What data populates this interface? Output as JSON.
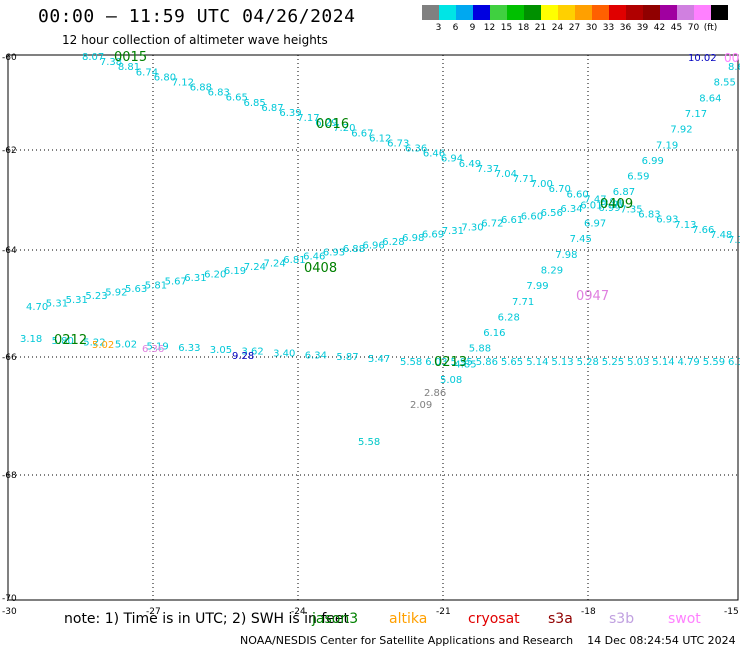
{
  "title": "00:00 – 11:59 UTC 04/26/2024",
  "subtitle": "12 hour collection of altimeter wave heights",
  "legend": {
    "unit": "(ft)",
    "colors": [
      "#808080",
      "#00e5e5",
      "#00a8f0",
      "#0000e0",
      "#40d040",
      "#00c000",
      "#009000",
      "#ffff00",
      "#ffd000",
      "#ffa000",
      "#ff6000",
      "#e00000",
      "#b00000",
      "#900000",
      "#a000a0",
      "#d080e0",
      "#ff80ff",
      "#000000"
    ],
    "ticks": [
      "3",
      "6",
      "9",
      "12",
      "15",
      "18",
      "21",
      "24",
      "27",
      "30",
      "33",
      "36",
      "39",
      "42",
      "45",
      "70"
    ]
  },
  "map": {
    "lat_labels": [
      "-60",
      "-62",
      "-64",
      "-66",
      "-68",
      "-70"
    ],
    "lon_labels": [
      "-30",
      "-27",
      "-24",
      "-21",
      "-18",
      "-15"
    ]
  },
  "tracks": [
    {
      "label": "0015",
      "color": "#008000",
      "points": [
        "8.07",
        "7.38",
        "8.81",
        "6.74",
        "6.80",
        "7.12",
        "6.88",
        "6.83",
        "6.65",
        "6.85",
        "6.87",
        "6.39",
        "7.17",
        "6.29",
        "7.20",
        "6.67",
        "6.12",
        "6.73",
        "6.36",
        "6.46",
        "6.94",
        "6.49",
        "7.37",
        "7.04",
        "7.71",
        "7.00",
        "6.70",
        "6.60",
        "7.47",
        "7.97",
        "7.35",
        "6.83",
        "6.93",
        "7.13",
        "7.66",
        "7.48",
        "7.3"
      ]
    },
    {
      "label": "0016",
      "color": "#008000",
      "points": []
    },
    {
      "label": "0408",
      "color": "#008000",
      "points": [
        "4.70",
        "5.31",
        "5.31",
        "5.23",
        "5.92",
        "5.63",
        "5.81",
        "5.67",
        "6.31",
        "6.20",
        "6.19",
        "7.24",
        "7.24",
        "6.81",
        "6.46",
        "6.93",
        "6.88",
        "6.96",
        "6.28",
        "6.98",
        "6.69",
        "7.31",
        "7.30",
        "6.72",
        "6.61",
        "6.60",
        "6.56",
        "6.34",
        "6.01",
        "6.94"
      ]
    },
    {
      "label": "0212",
      "color": "#008000",
      "points": [
        "3.18",
        "5.80",
        "5.22",
        "5.02",
        "5.19",
        "6.33",
        "3.05",
        "3.62",
        "3.40",
        "6.34",
        "5.87",
        "5.47"
      ]
    },
    {
      "label": "0213",
      "color": "#008000",
      "points": [
        "5.58",
        "6.03",
        "5.95",
        "5.86",
        "5.65",
        "5.14",
        "5.13",
        "5.28",
        "5.25",
        "5.03",
        "5.14",
        "4.79",
        "5.59",
        "6.3"
      ]
    },
    {
      "label": "0947",
      "color": "#e080e0",
      "points": [
        "5.08",
        "4.85",
        "5.88",
        "6.16",
        "6.28",
        "7.71",
        "7.99",
        "8.29",
        "7.98",
        "7.45",
        "6.97",
        "6.99",
        "6.87",
        "6.59",
        "6.99",
        "7.19",
        "7.92",
        "7.17",
        "8.64",
        "8.55",
        "8.69"
      ]
    },
    {
      "label": "0409",
      "color": "#008000",
      "points": []
    }
  ],
  "special_values": [
    {
      "value": "9.28",
      "color": "#0000c0"
    },
    {
      "value": "10.02",
      "color": "#0000c0"
    },
    {
      "value": "2.86",
      "color": "#808080"
    },
    {
      "value": "2.09",
      "color": "#808080"
    },
    {
      "value": "5.02",
      "color": "#ffa000"
    },
    {
      "value": "6.36",
      "color": "#e080e0"
    },
    {
      "value": "5.58",
      "color": "#00c8c8"
    }
  ],
  "note": "note: 1) Time is in UTC; 2) SWH is in feet",
  "satellites": [
    {
      "name": "jason3",
      "color": "#008000"
    },
    {
      "name": "altika",
      "color": "#ffa000"
    },
    {
      "name": "cryosat",
      "color": "#e00000"
    },
    {
      "name": "s3a",
      "color": "#900000"
    },
    {
      "name": "s3b",
      "color": "#c0a0e0"
    },
    {
      "name": "swot",
      "color": "#ff80ff"
    }
  ],
  "credit": "NOAA/NESDIS Center for Satellite Applications and Research",
  "timestamp": "14 Dec 08:24:54 UTC 2024"
}
